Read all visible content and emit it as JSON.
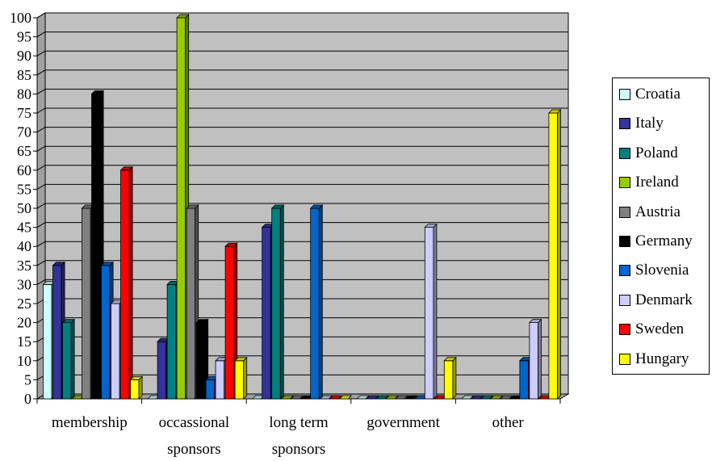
{
  "chart_data": {
    "type": "bar",
    "title": "",
    "xlabel": "",
    "ylabel": "",
    "ylim": [
      0,
      100
    ],
    "ytick_step": 5,
    "grid": true,
    "legend_position": "right",
    "plot_background": "#c0c0c0",
    "categories": [
      [
        "membership"
      ],
      [
        "occassional",
        "sponsors"
      ],
      [
        "long term",
        "sponsors"
      ],
      [
        "government"
      ],
      [
        "other"
      ]
    ],
    "series": [
      {
        "name": "Croatia",
        "color": "#ccffff",
        "values": [
          30,
          0,
          0,
          0,
          0
        ]
      },
      {
        "name": "Italy",
        "color": "#333399",
        "values": [
          35,
          15,
          45,
          0,
          0
        ]
      },
      {
        "name": "Poland",
        "color": "#008080",
        "values": [
          20,
          30,
          50,
          0,
          0
        ]
      },
      {
        "name": "Ireland",
        "color": "#99cc00",
        "values": [
          0,
          100,
          0,
          0,
          0
        ]
      },
      {
        "name": "Austria",
        "color": "#808080",
        "values": [
          50,
          50,
          0,
          0,
          0
        ]
      },
      {
        "name": "Germany",
        "color": "#000000",
        "values": [
          80,
          20,
          0,
          0,
          0
        ]
      },
      {
        "name": "Slovenia",
        "color": "#0066cc",
        "values": [
          35,
          5,
          50,
          0,
          10
        ]
      },
      {
        "name": "Denmark",
        "color": "#ccccff",
        "values": [
          25,
          10,
          0,
          45,
          20
        ]
      },
      {
        "name": "Sweden",
        "color": "#ff0000",
        "values": [
          60,
          40,
          0,
          0,
          0
        ]
      },
      {
        "name": "Hungary",
        "color": "#ffff00",
        "values": [
          5,
          10,
          0,
          10,
          75
        ]
      }
    ]
  }
}
